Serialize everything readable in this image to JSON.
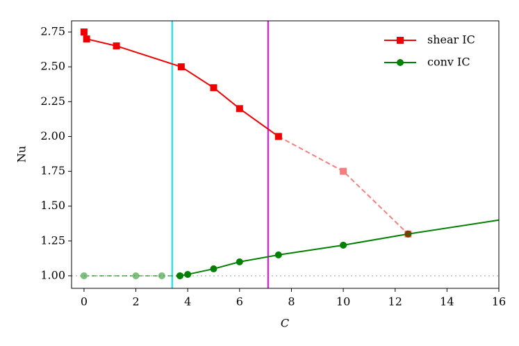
{
  "chart_data": {
    "type": "line",
    "xlabel": "C",
    "ylabel": "Nu",
    "xlim": [
      -0.48,
      16
    ],
    "ylim": [
      0.91,
      2.83
    ],
    "xticks": [
      0,
      2,
      4,
      6,
      8,
      10,
      12,
      14,
      16
    ],
    "yticks": [
      {
        "value": 1,
        "label": "1.00"
      },
      {
        "value": 1.25,
        "label": "1.25"
      },
      {
        "value": 1.5,
        "label": "1.50"
      },
      {
        "value": 1.75,
        "label": "1.75"
      },
      {
        "value": 2,
        "label": "2.00"
      },
      {
        "value": 2.25,
        "label": "2.25"
      },
      {
        "value": 2.5,
        "label": "2.50"
      },
      {
        "value": 2.75,
        "label": "2.75"
      }
    ],
    "legend": "upper right",
    "series": [
      {
        "name": "shear IC",
        "color": "#ee0000",
        "marker": "square",
        "style": "solid",
        "opacity": 1,
        "x": [
          0,
          0.1,
          1.25,
          3.75,
          5,
          6,
          7.5
        ],
        "values": [
          2.75,
          2.7,
          2.65,
          2.5,
          2.35,
          2.2,
          2.0
        ]
      },
      {
        "name": "conv IC",
        "color": "#008000",
        "marker": "circle",
        "style": "solid",
        "opacity": 1,
        "x": [
          3.7,
          4,
          5,
          6,
          7.5,
          10,
          12.5
        ],
        "values": [
          1.0,
          1.01,
          1.05,
          1.1,
          1.15,
          1.22,
          1.3
        ]
      },
      {
        "color": "#ee0000",
        "marker": "square",
        "style": "dashed",
        "opacity": 0.5,
        "x": [
          7.5,
          10,
          12.5
        ],
        "values": [
          2.0,
          1.75,
          1.3
        ]
      },
      {
        "color": "#008000",
        "marker": "circle",
        "style": "dashed",
        "opacity": 0.5,
        "x": [
          0,
          2,
          3,
          3.7
        ],
        "values": [
          1.0,
          1.0,
          1.0,
          1.0
        ]
      },
      {
        "color": "#008000",
        "marker": null,
        "style": "solid",
        "opacity": 1,
        "x": [
          12.5,
          16
        ],
        "values": [
          1.3,
          1.4
        ]
      }
    ],
    "vlines": [
      {
        "x": 3.4,
        "color": "#00e5ee"
      },
      {
        "x": 7.1,
        "color": "#ee00ee"
      }
    ],
    "hline": {
      "y": 1,
      "color": "#bbbbbb",
      "style": "dotted"
    }
  }
}
